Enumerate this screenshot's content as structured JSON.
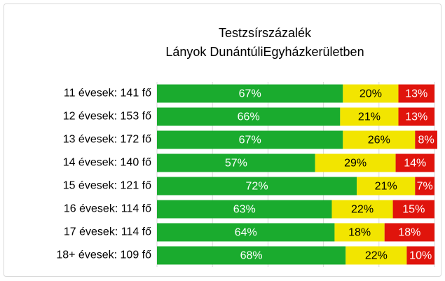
{
  "chart_data": {
    "type": "stacked_bar_horizontal",
    "title": [
      "Testzsírszázalék",
      "Lányok DunántúliEgyházkerületben"
    ],
    "categories": [
      "11 évesek: 141 fő",
      "12 évesek: 153 fő",
      "13 évesek: 172 fő",
      "14 évesek: 140 fő",
      "15 évesek: 121 fő",
      "16 évesek: 114 fő",
      "17 évesek: 114 fő",
      "18+ évesek: 109 fő"
    ],
    "series": [
      {
        "color": "#1aab2e",
        "values": [
          67,
          66,
          67,
          57,
          72,
          63,
          64,
          68
        ],
        "value_labels": [
          "67%",
          "66%",
          "67%",
          "57%",
          "72%",
          "63%",
          "64%",
          "68%"
        ]
      },
      {
        "color": "#f2e500",
        "values": [
          20,
          21,
          26,
          29,
          21,
          22,
          18,
          22
        ],
        "value_labels": [
          "20%",
          "21%",
          "26%",
          "29%",
          "21%",
          "22%",
          "18%",
          "22%"
        ]
      },
      {
        "color": "#e0140c",
        "values": [
          13,
          13,
          8,
          14,
          7,
          15,
          18,
          10
        ],
        "value_labels": [
          "13%",
          "13%",
          "8%",
          "14%",
          "7%",
          "15%",
          "18%",
          "10%"
        ]
      }
    ],
    "xlim": [
      0,
      100
    ],
    "xticks": [
      0,
      20,
      40,
      60,
      80,
      100
    ],
    "grid": true
  }
}
